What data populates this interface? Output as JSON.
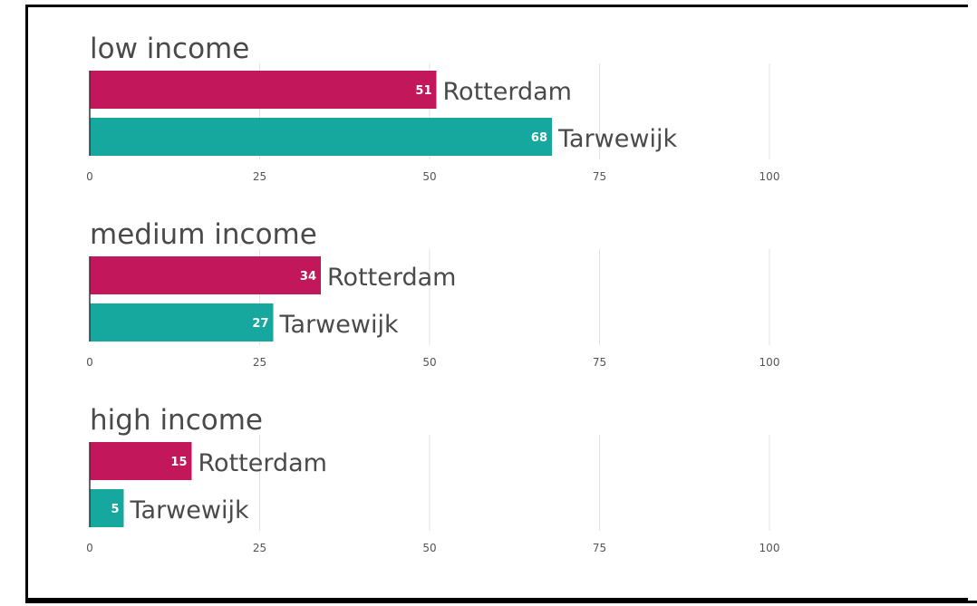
{
  "colors": {
    "Rotterdam": "#c2185b",
    "Tarwewijk": "#16a89e"
  },
  "chart_data": [
    {
      "type": "bar",
      "orientation": "horizontal",
      "title": "low income",
      "categories": [
        "Rotterdam",
        "Tarwewijk"
      ],
      "values": [
        51,
        68
      ],
      "xlim": [
        0,
        100
      ],
      "ticks": [
        0,
        25,
        50,
        75,
        100
      ],
      "grid": true
    },
    {
      "type": "bar",
      "orientation": "horizontal",
      "title": "medium income",
      "categories": [
        "Rotterdam",
        "Tarwewijk"
      ],
      "values": [
        34,
        27
      ],
      "xlim": [
        0,
        100
      ],
      "ticks": [
        0,
        25,
        50,
        75,
        100
      ],
      "grid": true
    },
    {
      "type": "bar",
      "orientation": "horizontal",
      "title": "high income",
      "categories": [
        "Rotterdam",
        "Tarwewijk"
      ],
      "values": [
        15,
        5
      ],
      "xlim": [
        0,
        100
      ],
      "ticks": [
        0,
        25,
        50,
        75,
        100
      ],
      "grid": true
    }
  ]
}
